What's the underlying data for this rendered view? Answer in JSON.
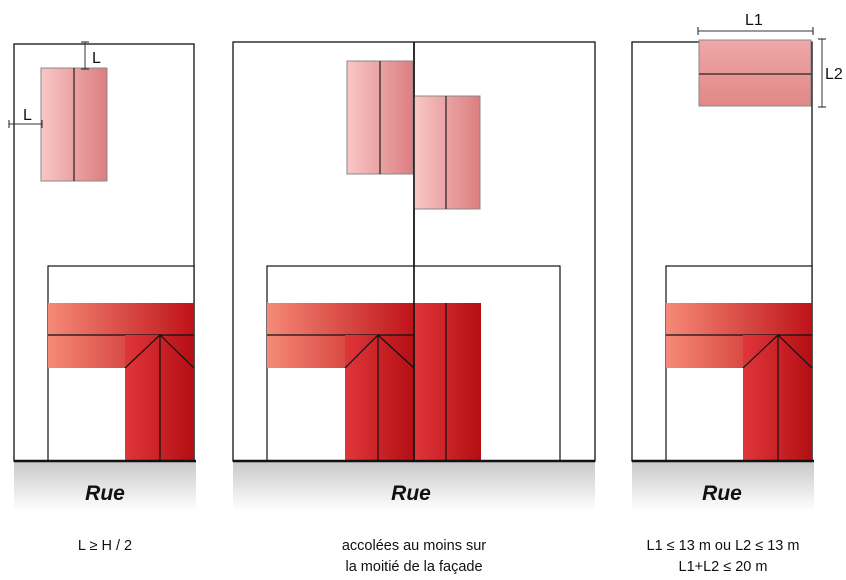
{
  "panels": [
    {
      "street": "Rue",
      "dims": {
        "top": "L",
        "side": "L"
      },
      "caption": [
        "L ≥ H / 2"
      ]
    },
    {
      "street": "Rue",
      "caption": [
        "accolées au moins sur",
        "la moitié de la façade"
      ]
    },
    {
      "street": "Rue",
      "dims": {
        "width": "L1",
        "height": "L2"
      },
      "caption": [
        "L1 ≤ 13 m ou L2 ≤ 13 m",
        "L1+L2 ≤ 20 m"
      ]
    }
  ],
  "colors": {
    "annex_light": "#f7b8b8",
    "annex_dark": "#dc7e80",
    "house_light": "#f08070",
    "house_dark": "#c2161c",
    "ground": "#d5d5d5"
  }
}
